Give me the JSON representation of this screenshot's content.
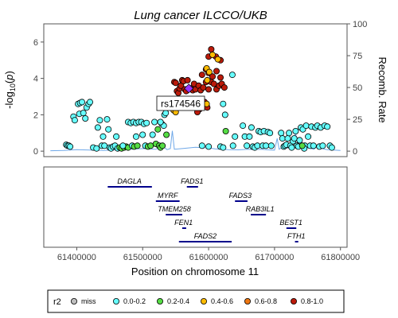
{
  "chart_data": {
    "type": "scatter",
    "title": "Lung cancer ILCCO/UKB",
    "xlabel": "Position on chromosome 11",
    "ylabel": "-log10(p)",
    "ylabel_main": "-log",
    "ylabel_sub": "10",
    "ylabel_open": "(",
    "ylabel_p": "p",
    "ylabel_close": ")",
    "y2label": "Recomb. Rate",
    "xlim": [
      61350000,
      61810000
    ],
    "ylim": [
      -0.3,
      7
    ],
    "y2lim": [
      -4.3,
      100
    ],
    "xticks": [
      61400000,
      61500000,
      61600000,
      61700000,
      61800000
    ],
    "xtick_labels": [
      "61400000",
      "61500000",
      "61600000",
      "61700000",
      "61800000"
    ],
    "yticks": [
      0,
      2,
      4,
      6
    ],
    "ytick_labels": [
      "0",
      "2",
      "4",
      "6"
    ],
    "y2ticks": [
      0,
      25,
      50,
      75,
      100
    ],
    "y2tick_labels": [
      "0",
      "25",
      "50",
      "75",
      "100"
    ],
    "lead_snp": {
      "label": "rs174546",
      "x": 61570000,
      "y": 3.3
    },
    "colors": {
      "miss": "#bfbfbf",
      "r2_00_02": "#66ffff",
      "r2_02_04": "#55dd44",
      "r2_04_06": "#ffbb00",
      "r2_06_08": "#ee7711",
      "r2_08_10": "#bb1a0a",
      "lead": "#9933ff",
      "recomb": "#6fa8e8",
      "gene": "#00008b"
    },
    "legend_title": "r2",
    "legend": [
      {
        "label": "miss",
        "color": "#bfbfbf"
      },
      {
        "label": "0.0-0.2",
        "color": "#66ffff"
      },
      {
        "label": "0.2-0.4",
        "color": "#55dd44"
      },
      {
        "label": "0.4-0.6",
        "color": "#ffbb00"
      },
      {
        "label": "0.6-0.8",
        "color": "#ee7711"
      },
      {
        "label": "0.8-1.0",
        "color": "#bb1a0a"
      }
    ],
    "points": [
      {
        "x": 61384000,
        "y": 0.35,
        "c": "#66ffff"
      },
      {
        "x": 61386000,
        "y": 0.3,
        "c": "#66ffff"
      },
      {
        "x": 61388000,
        "y": 0.3,
        "c": "#66ffff"
      },
      {
        "x": 61390000,
        "y": 0.25,
        "c": "#66ffff"
      },
      {
        "x": 61395000,
        "y": 1.9,
        "c": "#66ffff"
      },
      {
        "x": 61397000,
        "y": 1.7,
        "c": "#66ffff"
      },
      {
        "x": 61402000,
        "y": 2.6,
        "c": "#66ffff"
      },
      {
        "x": 61405000,
        "y": 2.65,
        "c": "#66ffff"
      },
      {
        "x": 61408000,
        "y": 2.7,
        "c": "#66ffff"
      },
      {
        "x": 61404000,
        "y": 2.05,
        "c": "#66ffff"
      },
      {
        "x": 61410000,
        "y": 2.1,
        "c": "#66ffff"
      },
      {
        "x": 61415000,
        "y": 2.4,
        "c": "#66ffff"
      },
      {
        "x": 61418000,
        "y": 2.6,
        "c": "#66ffff"
      },
      {
        "x": 61420000,
        "y": 2.7,
        "c": "#66ffff"
      },
      {
        "x": 61413000,
        "y": 1.8,
        "c": "#66ffff"
      },
      {
        "x": 61425000,
        "y": 0.2,
        "c": "#66ffff"
      },
      {
        "x": 61430000,
        "y": 0.15,
        "c": "#66ffff"
      },
      {
        "x": 61432000,
        "y": 1.3,
        "c": "#66ffff"
      },
      {
        "x": 61435000,
        "y": 1.7,
        "c": "#66ffff"
      },
      {
        "x": 61438000,
        "y": 0.3,
        "c": "#66ffff"
      },
      {
        "x": 61440000,
        "y": 0.8,
        "c": "#66ffff"
      },
      {
        "x": 61442000,
        "y": 0.3,
        "c": "#66ffff"
      },
      {
        "x": 61446000,
        "y": 1.75,
        "c": "#66ffff"
      },
      {
        "x": 61448000,
        "y": 1.2,
        "c": "#66ffff"
      },
      {
        "x": 61450000,
        "y": 0.2,
        "c": "#66ffff"
      },
      {
        "x": 61452000,
        "y": 0.15,
        "c": "#66ffff"
      },
      {
        "x": 61455000,
        "y": 0.25,
        "c": "#66ffff"
      },
      {
        "x": 61458000,
        "y": 0.3,
        "c": "#66ffff"
      },
      {
        "x": 61460000,
        "y": 0.8,
        "c": "#66ffff"
      },
      {
        "x": 61462000,
        "y": 0.15,
        "c": "#66ffff"
      },
      {
        "x": 61465000,
        "y": 0.2,
        "c": "#55dd44"
      },
      {
        "x": 61468000,
        "y": 0.15,
        "c": "#55dd44"
      },
      {
        "x": 61472000,
        "y": 0.2,
        "c": "#55dd44"
      },
      {
        "x": 61475000,
        "y": 0.25,
        "c": "#55dd44"
      },
      {
        "x": 61478000,
        "y": 0.2,
        "c": "#55dd44"
      },
      {
        "x": 61470000,
        "y": 0.3,
        "c": "#66ffff"
      },
      {
        "x": 61478000,
        "y": 1.6,
        "c": "#66ffff"
      },
      {
        "x": 61482000,
        "y": 1.55,
        "c": "#66ffff"
      },
      {
        "x": 61486000,
        "y": 1.6,
        "c": "#66ffff"
      },
      {
        "x": 61490000,
        "y": 1.55,
        "c": "#66ffff"
      },
      {
        "x": 61494000,
        "y": 1.6,
        "c": "#66ffff"
      },
      {
        "x": 61490000,
        "y": 0.8,
        "c": "#66ffff"
      },
      {
        "x": 61484000,
        "y": 0.3,
        "c": "#66ffff"
      },
      {
        "x": 61487000,
        "y": 0.25,
        "c": "#55dd44"
      },
      {
        "x": 61492000,
        "y": 0.3,
        "c": "#55dd44"
      },
      {
        "x": 61498000,
        "y": 1.6,
        "c": "#66ffff"
      },
      {
        "x": 61502000,
        "y": 1.5,
        "c": "#66ffff"
      },
      {
        "x": 61506000,
        "y": 1.55,
        "c": "#66ffff"
      },
      {
        "x": 61500000,
        "y": 0.9,
        "c": "#66ffff"
      },
      {
        "x": 61504000,
        "y": 0.3,
        "c": "#66ffff"
      },
      {
        "x": 61508000,
        "y": 0.25,
        "c": "#55dd44"
      },
      {
        "x": 61512000,
        "y": 0.3,
        "c": "#55dd44"
      },
      {
        "x": 61515000,
        "y": 0.9,
        "c": "#66ffff"
      },
      {
        "x": 61518000,
        "y": 1.6,
        "c": "#66ffff"
      },
      {
        "x": 61520000,
        "y": 0.4,
        "c": "#55dd44"
      },
      {
        "x": 61523000,
        "y": 1.2,
        "c": "#55dd44"
      },
      {
        "x": 61525000,
        "y": 0.3,
        "c": "#55dd44"
      },
      {
        "x": 61527000,
        "y": 0.2,
        "c": "#55dd44"
      },
      {
        "x": 61530000,
        "y": 0.3,
        "c": "#55dd44"
      },
      {
        "x": 61529000,
        "y": 1.5,
        "c": "#66ffff"
      },
      {
        "x": 61532000,
        "y": 1.4,
        "c": "#66ffff"
      },
      {
        "x": 61527000,
        "y": 1.6,
        "c": "#66ffff"
      },
      {
        "x": 61533000,
        "y": 2.0,
        "c": "#66ffff"
      },
      {
        "x": 61535000,
        "y": 2.1,
        "c": "#66ffff"
      },
      {
        "x": 61536000,
        "y": 0.9,
        "c": "#55dd44"
      },
      {
        "x": 61546000,
        "y": 2.6,
        "c": "#ffbb00"
      },
      {
        "x": 61548000,
        "y": 2.4,
        "c": "#ffbb00"
      },
      {
        "x": 61547000,
        "y": 2.25,
        "c": "#ffbb00"
      },
      {
        "x": 61550000,
        "y": 2.15,
        "c": "#ffbb00"
      },
      {
        "x": 61548000,
        "y": 3.8,
        "c": "#bb1a0a"
      },
      {
        "x": 61550000,
        "y": 3.75,
        "c": "#bb1a0a"
      },
      {
        "x": 61552000,
        "y": 3.3,
        "c": "#bb1a0a"
      },
      {
        "x": 61554000,
        "y": 3.2,
        "c": "#bb1a0a"
      },
      {
        "x": 61556000,
        "y": 3.45,
        "c": "#bb1a0a"
      },
      {
        "x": 61558000,
        "y": 3.6,
        "c": "#bb1a0a"
      },
      {
        "x": 61560000,
        "y": 3.9,
        "c": "#bb1a0a"
      },
      {
        "x": 61562000,
        "y": 3.85,
        "c": "#bb1a0a"
      },
      {
        "x": 61564000,
        "y": 3.4,
        "c": "#bb1a0a"
      },
      {
        "x": 61566000,
        "y": 3.3,
        "c": "#bb1a0a"
      },
      {
        "x": 61568000,
        "y": 3.9,
        "c": "#bb1a0a"
      },
      {
        "x": 61573000,
        "y": 3.45,
        "c": "#bb1a0a"
      },
      {
        "x": 61576000,
        "y": 3.35,
        "c": "#bb1a0a"
      },
      {
        "x": 61578000,
        "y": 3.7,
        "c": "#bb1a0a"
      },
      {
        "x": 61562000,
        "y": 2.8,
        "c": "#bb1a0a"
      },
      {
        "x": 61565000,
        "y": 2.75,
        "c": "#bb1a0a"
      },
      {
        "x": 61570000,
        "y": 2.6,
        "c": "#bb1a0a"
      },
      {
        "x": 61574000,
        "y": 2.6,
        "c": "#bb1a0a"
      },
      {
        "x": 61578000,
        "y": 2.5,
        "c": "#bb1a0a"
      },
      {
        "x": 61582000,
        "y": 2.35,
        "c": "#bb1a0a"
      },
      {
        "x": 61586000,
        "y": 2.3,
        "c": "#bb1a0a"
      },
      {
        "x": 61583000,
        "y": 2.15,
        "c": "#bb1a0a"
      },
      {
        "x": 61590000,
        "y": 2.5,
        "c": "#bb1a0a"
      },
      {
        "x": 61594000,
        "y": 2.7,
        "c": "#bb1a0a"
      },
      {
        "x": 61598000,
        "y": 2.4,
        "c": "#bb1a0a"
      },
      {
        "x": 61580000,
        "y": 3.4,
        "c": "#bb1a0a"
      },
      {
        "x": 61585000,
        "y": 3.6,
        "c": "#bb1a0a"
      },
      {
        "x": 61588000,
        "y": 3.35,
        "c": "#bb1a0a"
      },
      {
        "x": 61592000,
        "y": 3.5,
        "c": "#bb1a0a"
      },
      {
        "x": 61596000,
        "y": 3.8,
        "c": "#bb1a0a"
      },
      {
        "x": 61600000,
        "y": 3.4,
        "c": "#bb1a0a"
      },
      {
        "x": 61604000,
        "y": 3.8,
        "c": "#bb1a0a"
      },
      {
        "x": 61608000,
        "y": 3.7,
        "c": "#bb1a0a"
      },
      {
        "x": 61612000,
        "y": 3.4,
        "c": "#bb1a0a"
      },
      {
        "x": 61616000,
        "y": 3.6,
        "c": "#bb1a0a"
      },
      {
        "x": 61620000,
        "y": 3.7,
        "c": "#bb1a0a"
      },
      {
        "x": 61624000,
        "y": 3.5,
        "c": "#bb1a0a"
      },
      {
        "x": 61590000,
        "y": 4.2,
        "c": "#bb1a0a"
      },
      {
        "x": 61600000,
        "y": 4.3,
        "c": "#bb1a0a"
      },
      {
        "x": 61606000,
        "y": 4.1,
        "c": "#bb1a0a"
      },
      {
        "x": 61612000,
        "y": 4.4,
        "c": "#bb1a0a"
      },
      {
        "x": 61618000,
        "y": 4.05,
        "c": "#bb1a0a"
      },
      {
        "x": 61596000,
        "y": 4.5,
        "c": "#bb1a0a"
      },
      {
        "x": 61600000,
        "y": 5.2,
        "c": "#bb1a0a"
      },
      {
        "x": 61604000,
        "y": 5.6,
        "c": "#bb1a0a"
      },
      {
        "x": 61611000,
        "y": 5.2,
        "c": "#bb1a0a"
      },
      {
        "x": 61618000,
        "y": 5.0,
        "c": "#bb1a0a"
      },
      {
        "x": 61606000,
        "y": 5.3,
        "c": "#ffbb00"
      },
      {
        "x": 61614000,
        "y": 5.05,
        "c": "#ffbb00"
      },
      {
        "x": 61597000,
        "y": 4.55,
        "c": "#ffbb00"
      },
      {
        "x": 61601000,
        "y": 4.35,
        "c": "#ffbb00"
      },
      {
        "x": 61598000,
        "y": 3.9,
        "c": "#ffbb00"
      },
      {
        "x": 61597000,
        "y": 2.6,
        "c": "#ffbb00"
      },
      {
        "x": 61622000,
        "y": 2.6,
        "c": "#66ffff"
      },
      {
        "x": 61625000,
        "y": 2.0,
        "c": "#66ffff"
      },
      {
        "x": 61626000,
        "y": 1.1,
        "c": "#55dd44"
      },
      {
        "x": 61636000,
        "y": 4.2,
        "c": "#66ffff"
      },
      {
        "x": 61590000,
        "y": 0.3,
        "c": "#66ffff"
      },
      {
        "x": 61600000,
        "y": 0.25,
        "c": "#66ffff"
      },
      {
        "x": 61618000,
        "y": 0.25,
        "c": "#66ffff"
      },
      {
        "x": 61622000,
        "y": 0.2,
        "c": "#66ffff"
      },
      {
        "x": 61637000,
        "y": 0.3,
        "c": "#66ffff"
      },
      {
        "x": 61640000,
        "y": 0.8,
        "c": "#66ffff"
      },
      {
        "x": 61652000,
        "y": 1.4,
        "c": "#66ffff"
      },
      {
        "x": 61655000,
        "y": 0.8,
        "c": "#66ffff"
      },
      {
        "x": 61658000,
        "y": 0.3,
        "c": "#66ffff"
      },
      {
        "x": 61662000,
        "y": 0.8,
        "c": "#66ffff"
      },
      {
        "x": 61665000,
        "y": 1.3,
        "c": "#66ffff"
      },
      {
        "x": 61667000,
        "y": 0.25,
        "c": "#66ffff"
      },
      {
        "x": 61670000,
        "y": 0.2,
        "c": "#66ffff"
      },
      {
        "x": 61674000,
        "y": 0.3,
        "c": "#66ffff"
      },
      {
        "x": 61676000,
        "y": 1.1,
        "c": "#66ffff"
      },
      {
        "x": 61679000,
        "y": 1.05,
        "c": "#66ffff"
      },
      {
        "x": 61682000,
        "y": 0.3,
        "c": "#66ffff"
      },
      {
        "x": 61684000,
        "y": 1.1,
        "c": "#66ffff"
      },
      {
        "x": 61687000,
        "y": 0.3,
        "c": "#66ffff"
      },
      {
        "x": 61690000,
        "y": 1.05,
        "c": "#66ffff"
      },
      {
        "x": 61693000,
        "y": 1.0,
        "c": "#66ffff"
      },
      {
        "x": 61695000,
        "y": 0.3,
        "c": "#66ffff"
      },
      {
        "x": 61710000,
        "y": 1.0,
        "c": "#66ffff"
      },
      {
        "x": 61712000,
        "y": 0.7,
        "c": "#66ffff"
      },
      {
        "x": 61714000,
        "y": 0.25,
        "c": "#66ffff"
      },
      {
        "x": 61716000,
        "y": 0.3,
        "c": "#66ffff"
      },
      {
        "x": 61718000,
        "y": 0.35,
        "c": "#66ffff"
      },
      {
        "x": 61720000,
        "y": 0.7,
        "c": "#66ffff"
      },
      {
        "x": 61722000,
        "y": 1.0,
        "c": "#66ffff"
      },
      {
        "x": 61724000,
        "y": 0.3,
        "c": "#66ffff"
      },
      {
        "x": 61726000,
        "y": 0.2,
        "c": "#66ffff"
      },
      {
        "x": 61728000,
        "y": 0.55,
        "c": "#66ffff"
      },
      {
        "x": 61730000,
        "y": 0.7,
        "c": "#66ffff"
      },
      {
        "x": 61732000,
        "y": 1.1,
        "c": "#66ffff"
      },
      {
        "x": 61734000,
        "y": 0.3,
        "c": "#66ffff"
      },
      {
        "x": 61736000,
        "y": 0.25,
        "c": "#66ffff"
      },
      {
        "x": 61738000,
        "y": 0.6,
        "c": "#66ffff"
      },
      {
        "x": 61740000,
        "y": 1.3,
        "c": "#66ffff"
      },
      {
        "x": 61743000,
        "y": 1.2,
        "c": "#66ffff"
      },
      {
        "x": 61746000,
        "y": 0.3,
        "c": "#66ffff"
      },
      {
        "x": 61748000,
        "y": 1.4,
        "c": "#66ffff"
      },
      {
        "x": 61751000,
        "y": 0.8,
        "c": "#66ffff"
      },
      {
        "x": 61754000,
        "y": 0.3,
        "c": "#66ffff"
      },
      {
        "x": 61756000,
        "y": 1.35,
        "c": "#66ffff"
      },
      {
        "x": 61759000,
        "y": 0.3,
        "c": "#66ffff"
      },
      {
        "x": 61762000,
        "y": 1.3,
        "c": "#66ffff"
      },
      {
        "x": 61765000,
        "y": 1.4,
        "c": "#66ffff"
      },
      {
        "x": 61768000,
        "y": 0.25,
        "c": "#66ffff"
      },
      {
        "x": 61770000,
        "y": 1.3,
        "c": "#66ffff"
      },
      {
        "x": 61773000,
        "y": 0.3,
        "c": "#66ffff"
      },
      {
        "x": 61776000,
        "y": 1.4,
        "c": "#66ffff"
      },
      {
        "x": 61780000,
        "y": 1.35,
        "c": "#66ffff"
      },
      {
        "x": 61784000,
        "y": 0.3,
        "c": "#66ffff"
      },
      {
        "x": 61787000,
        "y": 0.2,
        "c": "#66ffff"
      },
      {
        "x": 61745000,
        "y": 0.15,
        "c": "#66ffff"
      },
      {
        "x": 61742000,
        "y": 0.3,
        "c": "#55dd44"
      }
    ],
    "recomb": [
      [
        61360000,
        0.3
      ],
      [
        61380000,
        0.5
      ],
      [
        61400000,
        1.2
      ],
      [
        61420000,
        0.8
      ],
      [
        61440000,
        0.6
      ],
      [
        61460000,
        1.0
      ],
      [
        61480000,
        1.4
      ],
      [
        61500000,
        2.0
      ],
      [
        61520000,
        1.5
      ],
      [
        61530000,
        4.0
      ],
      [
        61537000,
        1.2
      ],
      [
        61542000,
        2.0
      ],
      [
        61545000,
        16.0
      ],
      [
        61548000,
        1.5
      ],
      [
        61560000,
        2.0
      ],
      [
        61580000,
        3.0
      ],
      [
        61600000,
        2.5
      ],
      [
        61610000,
        1.8
      ],
      [
        61620000,
        1.5
      ],
      [
        61630000,
        1.2
      ],
      [
        61645000,
        1.0
      ],
      [
        61660000,
        1.5
      ],
      [
        61670000,
        1.2
      ],
      [
        61680000,
        1.5
      ],
      [
        61690000,
        1.0
      ],
      [
        61700000,
        0.8
      ],
      [
        61704000,
        10.0
      ],
      [
        61707000,
        1.5
      ],
      [
        61712000,
        3.0
      ],
      [
        61720000,
        2.5
      ],
      [
        61728000,
        7.0
      ],
      [
        61732000,
        14.0
      ],
      [
        61736000,
        2.0
      ],
      [
        61745000,
        3.0
      ],
      [
        61760000,
        1.5
      ],
      [
        61768000,
        6.0
      ],
      [
        61772000,
        2.0
      ],
      [
        61780000,
        1.2
      ],
      [
        61790000,
        0.8
      ],
      [
        61800000,
        0.5
      ]
    ],
    "genes": [
      {
        "name": "DAGLA",
        "start": 61447000,
        "end": 61514000,
        "row": 0,
        "label_x": 61480000
      },
      {
        "name": "FADS1",
        "start": 61567000,
        "end": 61584000,
        "row": 0,
        "label_x": 61575000
      },
      {
        "name": "MYRF",
        "start": 61520000,
        "end": 61556000,
        "row": 1,
        "label_x": 61538000
      },
      {
        "name": "FADS3",
        "start": 61640000,
        "end": 61659000,
        "row": 1,
        "label_x": 61648000
      },
      {
        "name": "TMEM258",
        "start": 61535000,
        "end": 61560000,
        "row": 2,
        "label_x": 61548000
      },
      {
        "name": "RAB3IL1",
        "start": 61664000,
        "end": 61687000,
        "row": 2,
        "label_x": 61678000
      },
      {
        "name": "FEN1",
        "start": 61560000,
        "end": 61566000,
        "row": 3,
        "label_x": 61562000
      },
      {
        "name": "BEST1",
        "start": 61718000,
        "end": 61733000,
        "row": 3,
        "label_x": 61725000
      },
      {
        "name": "FADS2",
        "start": 61555000,
        "end": 61635000,
        "row": 4,
        "label_x": 61595000
      },
      {
        "name": "FTH1",
        "start": 61731000,
        "end": 61736000,
        "row": 4,
        "label_x": 61733000
      }
    ]
  }
}
